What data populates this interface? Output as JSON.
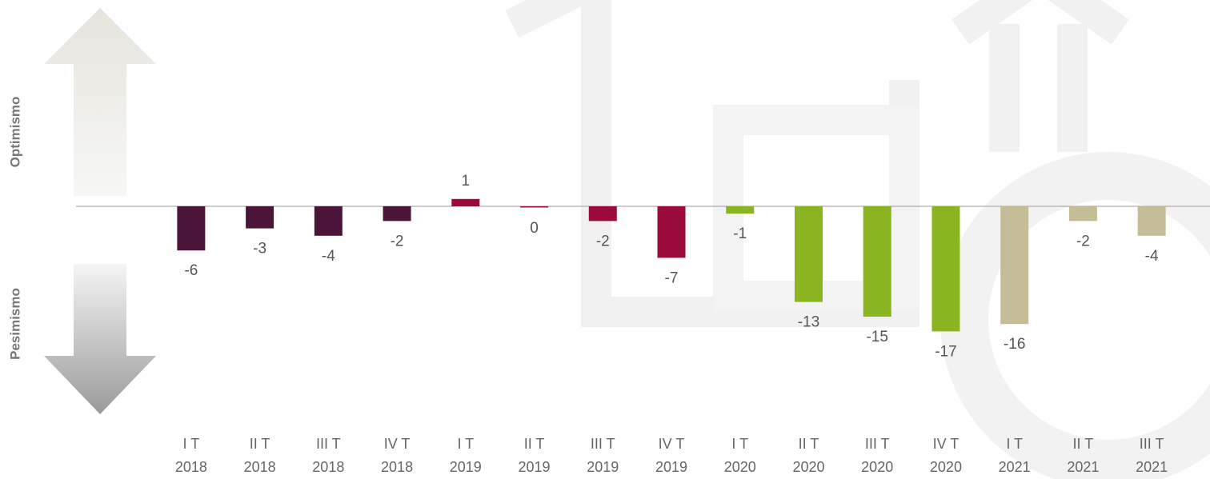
{
  "chart_data": {
    "type": "bar",
    "axis_labels": {
      "top": "Optimismo",
      "bottom": "Pesimismo"
    },
    "categories": [
      [
        "I T",
        "2018"
      ],
      [
        "II T",
        "2018"
      ],
      [
        "III T",
        "2018"
      ],
      [
        "IV T",
        "2018"
      ],
      [
        "I T",
        "2019"
      ],
      [
        "II T",
        "2019"
      ],
      [
        "III T",
        "2019"
      ],
      [
        "IV T",
        "2019"
      ],
      [
        "I T",
        "2020"
      ],
      [
        "II T",
        "2020"
      ],
      [
        "III T",
        "2020"
      ],
      [
        "IV T",
        "2020"
      ],
      [
        "I T",
        "2021"
      ],
      [
        "II T",
        "2021"
      ],
      [
        "III T",
        "2021"
      ]
    ],
    "values": [
      -6,
      -3,
      -4,
      -2,
      1,
      0,
      -2,
      -7,
      -1,
      -13,
      -15,
      -17,
      -16,
      -2,
      -4
    ],
    "colors": [
      "#4a1538",
      "#4a1538",
      "#4a1538",
      "#4a1538",
      "#9b0a3c",
      "#9b0a3c",
      "#9b0a3c",
      "#9b0a3c",
      "#8ab520",
      "#8ab520",
      "#8ab520",
      "#8ab520",
      "#c5bd98",
      "#c5bd98",
      "#c5bd98"
    ],
    "ylim": [
      -30,
      25
    ]
  }
}
